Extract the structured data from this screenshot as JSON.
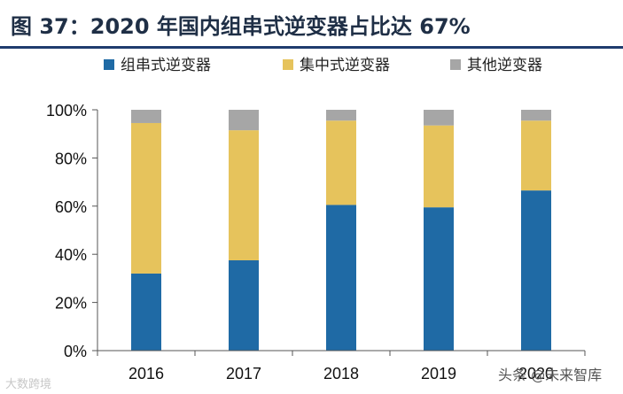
{
  "title": "图 37：2020 年国内组串式逆变器占比达 67%",
  "chart_data": {
    "type": "bar",
    "stacked": true,
    "categories": [
      "2016",
      "2017",
      "2018",
      "2019",
      "2020"
    ],
    "series": [
      {
        "name": "组串式逆变器",
        "color": "#1f6aa5",
        "values": [
          32,
          37.5,
          60.5,
          59.5,
          66.5
        ]
      },
      {
        "name": "集中式逆变器",
        "color": "#e6c35c",
        "values": [
          62.5,
          54,
          35,
          34,
          29
        ]
      },
      {
        "name": "其他逆变器",
        "color": "#a6a6a6",
        "values": [
          5.5,
          8.5,
          4.5,
          6.5,
          4.5
        ]
      }
    ],
    "ylim": [
      0,
      100
    ],
    "yticks": [
      "0%",
      "20%",
      "40%",
      "60%",
      "80%",
      "100%"
    ],
    "legend_position": "top",
    "grid": false
  },
  "watermarks": {
    "left": "大数跨境",
    "right": "头条 @未来智库"
  }
}
